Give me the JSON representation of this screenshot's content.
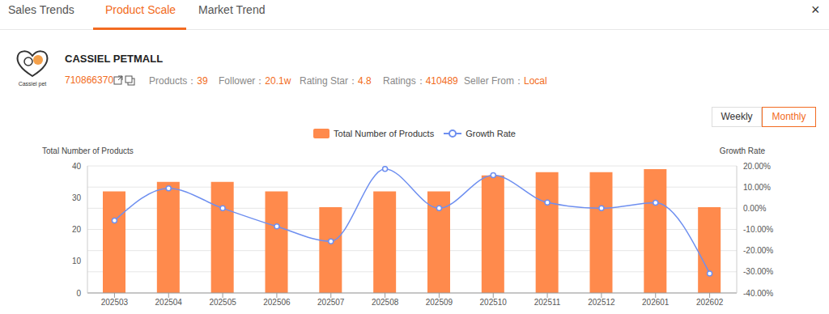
{
  "tabs": [
    {
      "label": "Sales Trends",
      "active": false
    },
    {
      "label": "Product Scale",
      "active": true
    },
    {
      "label": "Market Trend",
      "active": false
    }
  ],
  "close": "×",
  "shop": {
    "logo_text": "Cassiel pet",
    "name": "CASSIEL PETMALL",
    "id": "710866370",
    "stats": [
      {
        "label": "Products：",
        "value": 39
      },
      {
        "label": "Follower：",
        "value": "20.1w"
      },
      {
        "label": "Rating Star：",
        "value": 4.8
      },
      {
        "label": "Ratings：",
        "value": 410489
      },
      {
        "label": "Seller From：",
        "value": "Local"
      }
    ]
  },
  "toggle": [
    {
      "label": "Weekly",
      "active": false
    },
    {
      "label": "Monthly",
      "active": true
    }
  ],
  "chart_data": {
    "type": "bar",
    "ylabel": "Total Number of Products",
    "y2label": "Growth Rate",
    "categories": [
      "202503",
      "202504",
      "202505",
      "202506",
      "202507",
      "202508",
      "202509",
      "202510",
      "202511",
      "202512",
      "202601",
      "202602"
    ],
    "series": [
      {
        "name": "Total Number of Products",
        "type": "bar",
        "color": "#ff8a4c",
        "values": [
          32,
          35,
          35,
          32,
          27,
          32,
          32,
          37,
          38,
          38,
          39,
          27
        ]
      },
      {
        "name": "Growth Rate",
        "type": "line",
        "axis": "y2",
        "color": "#6e8ff0",
        "marker": "circle",
        "line_style": "smooth",
        "values": [
          -5.8,
          9.4,
          0,
          -8.6,
          -15.6,
          18.6,
          0,
          15.6,
          2.7,
          0,
          2.6,
          -30.8
        ]
      }
    ],
    "ylim": [
      0,
      40
    ],
    "yticks": [
      0,
      10,
      20,
      30,
      40
    ],
    "y2lim": [
      -40,
      20
    ],
    "y2ticks": [
      {
        "value": -40,
        "label": "-40.00%"
      },
      {
        "value": -30,
        "label": "-30.00%"
      },
      {
        "value": -20,
        "label": "-20.00%"
      },
      {
        "value": -10,
        "label": "-10.00%"
      },
      {
        "value": 0,
        "label": "0.00%"
      },
      {
        "value": 10,
        "label": "10.00%"
      },
      {
        "value": 20,
        "label": "20.00%"
      }
    ],
    "grid": true,
    "legend": "top"
  }
}
